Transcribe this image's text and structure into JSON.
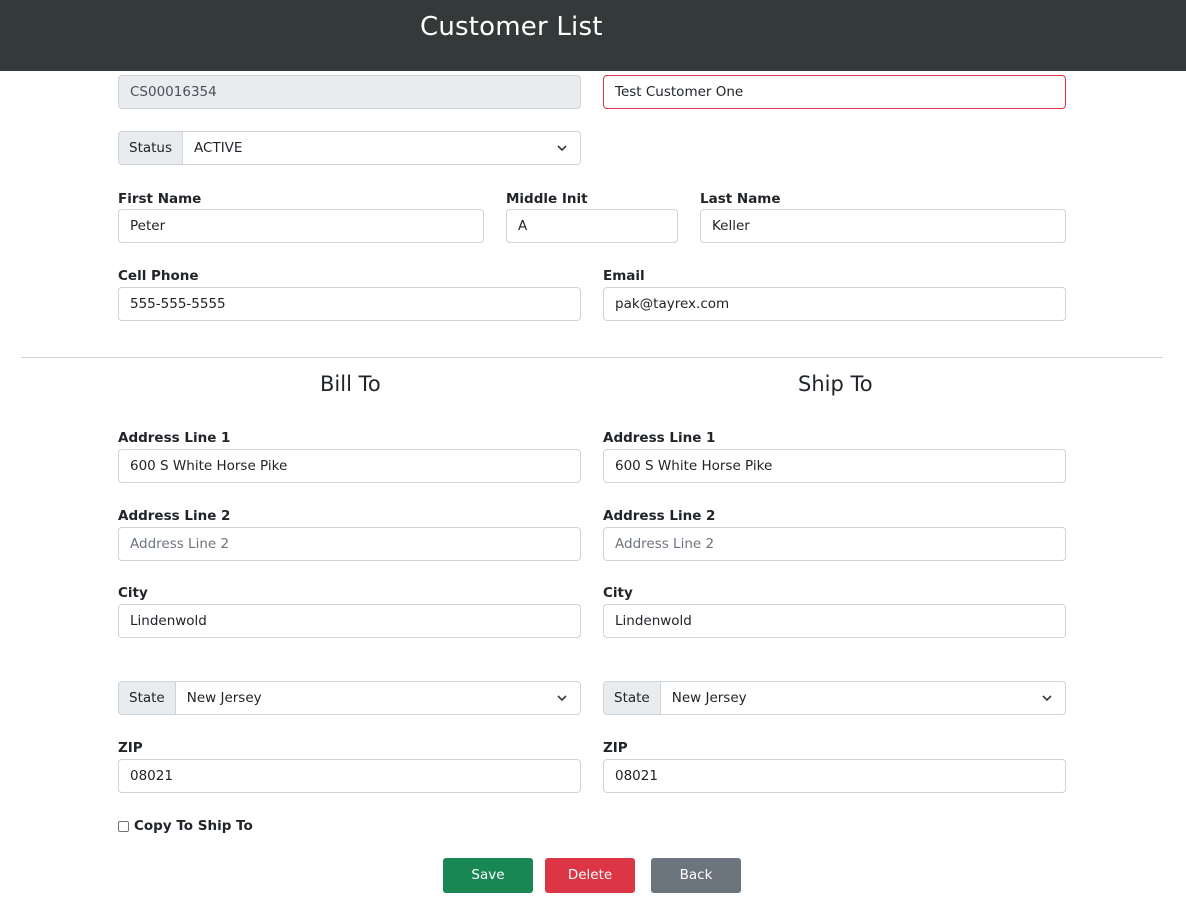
{
  "header": {
    "title": "Customer List"
  },
  "customer": {
    "id": "CS00016354",
    "name": "Test Customer One",
    "status_label": "Status",
    "status_value": "ACTIVE"
  },
  "contact": {
    "first_name_label": "First Name",
    "first_name": "Peter",
    "middle_init_label": "Middle Init",
    "middle_init": "A",
    "last_name_label": "Last Name",
    "last_name": "Keller",
    "cell_phone_label": "Cell Phone",
    "cell_phone": "555-555-5555",
    "email_label": "Email",
    "email": "pak@tayrex.com"
  },
  "bill_to": {
    "title": "Bill To",
    "address1_label": "Address Line 1",
    "address1": "600 S White Horse Pike",
    "address2_label": "Address Line 2",
    "address2_placeholder": "Address Line 2",
    "city_label": "City",
    "city": "Lindenwold",
    "state_label": "State",
    "state": "New Jersey",
    "zip_label": "ZIP",
    "zip": "08021"
  },
  "ship_to": {
    "title": "Ship To",
    "address1_label": "Address Line 1",
    "address1": "600 S White Horse Pike",
    "address2_label": "Address Line 2",
    "address2_placeholder": "Address Line 2",
    "city_label": "City",
    "city": "Lindenwold",
    "state_label": "State",
    "state": "New Jersey",
    "zip_label": "ZIP",
    "zip": "08021"
  },
  "copy_to_ship": {
    "label": "Copy To Ship To",
    "checked": false
  },
  "actions": {
    "save": "Save",
    "delete": "Delete",
    "back": "Back"
  },
  "colors": {
    "header_bg": "#343a3a",
    "save": "#198754",
    "delete": "#dc3545",
    "back": "#6c757d",
    "invalid_border": "#dc3545"
  }
}
